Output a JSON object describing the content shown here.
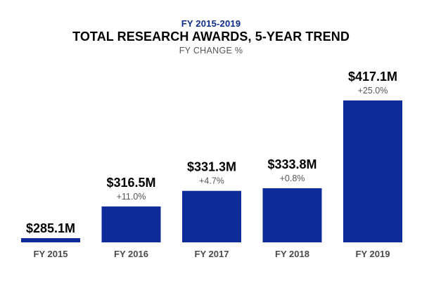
{
  "header": {
    "period": "FY 2015-2019",
    "title": "TOTAL RESEARCH AWARDS, 5-YEAR TREND",
    "subtitle": "FY CHANGE %"
  },
  "colors": {
    "bar": "#0f2b99",
    "period_text": "#0d2b8c",
    "axis_line": "#cccccc"
  },
  "chart_data": {
    "type": "bar",
    "title": "TOTAL RESEARCH AWARDS, 5-YEAR TREND",
    "subtitle": "FY CHANGE %",
    "xlabel": "",
    "ylabel": "",
    "categories": [
      "FY 2015",
      "FY 2016",
      "FY 2017",
      "FY 2018",
      "FY 2019"
    ],
    "values": [
      285.1,
      316.5,
      331.3,
      333.8,
      417.1
    ],
    "value_labels": [
      "$285.1M",
      "$316.5M",
      "$331.3M",
      "$333.8M",
      "$417.1M"
    ],
    "change_labels": [
      "",
      "+11.0%",
      "+4.7%",
      "+0.8%",
      "+25.0%"
    ],
    "units": "$M",
    "grid": false,
    "legend": "none"
  }
}
